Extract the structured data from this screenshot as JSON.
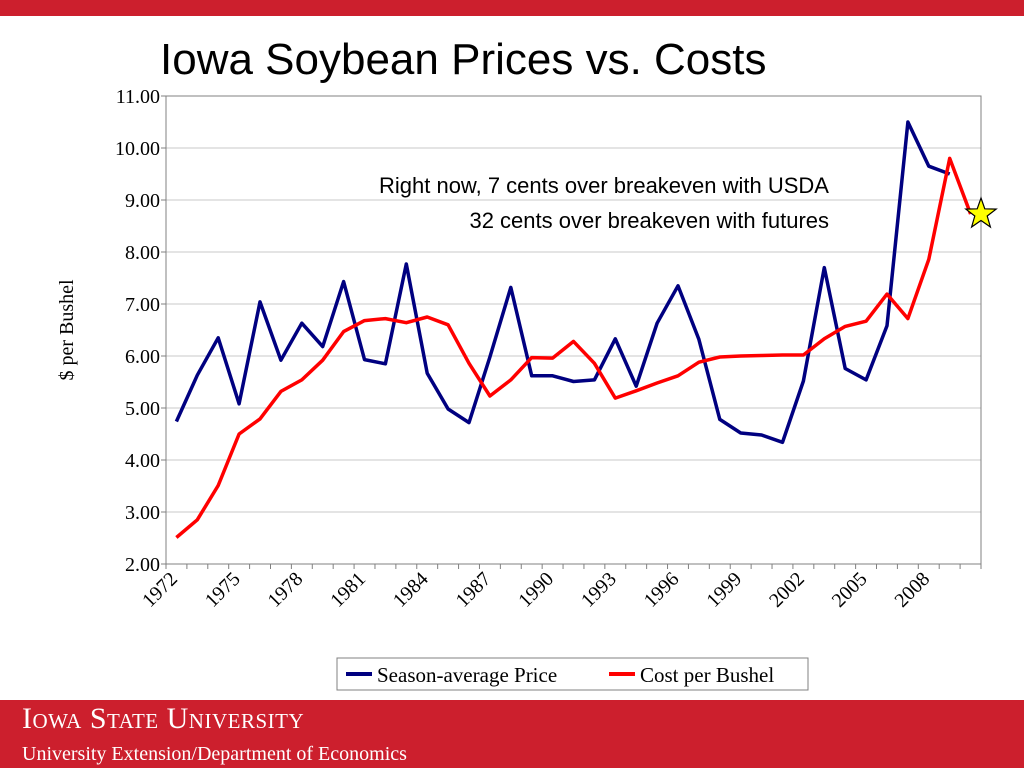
{
  "slide": {
    "title": "Iowa Soybean Prices vs. Costs",
    "footer_name": "Iowa State University",
    "footer_sub": "University Extension/Department of Economics",
    "accent": "#cc1f2d"
  },
  "chart_data": {
    "type": "line",
    "ylabel": "$ per Bushel",
    "ylim": [
      2,
      11
    ],
    "ytick_labels": [
      "2.00",
      "3.00",
      "4.00",
      "5.00",
      "6.00",
      "7.00",
      "8.00",
      "9.00",
      "10.00",
      "11.00"
    ],
    "xtick_labels": [
      "1972",
      "1975",
      "1978",
      "1981",
      "1984",
      "1987",
      "1990",
      "1993",
      "1996",
      "1999",
      "2002",
      "2005",
      "2008"
    ],
    "grid": true,
    "legend_position": "bottom",
    "annotation": [
      "Right now, 7 cents over breakeven with USDA",
      "32 cents over breakeven with futures"
    ],
    "series": [
      {
        "name": "Season-average Price",
        "color": "#000080",
        "x": [
          1972,
          1973,
          1974,
          1975,
          1976,
          1977,
          1978,
          1979,
          1980,
          1981,
          1982,
          1983,
          1984,
          1985,
          1986,
          1987,
          1988,
          1989,
          1990,
          1991,
          1992,
          1993,
          1994,
          1995,
          1996,
          1997,
          1998,
          1999,
          2000,
          2001,
          2002,
          2003,
          2004,
          2005,
          2006,
          2007,
          2008,
          2009
        ],
        "values": [
          4.74,
          5.63,
          6.35,
          5.08,
          7.04,
          5.92,
          6.63,
          6.18,
          7.43,
          5.93,
          5.85,
          7.77,
          5.67,
          4.98,
          4.72,
          5.98,
          7.32,
          5.62,
          5.62,
          5.51,
          5.54,
          6.33,
          5.42,
          6.63,
          7.35,
          6.32,
          4.78,
          4.52,
          4.48,
          4.34,
          5.52,
          7.7,
          5.76,
          5.54,
          6.58,
          10.5,
          9.65,
          9.5
        ]
      },
      {
        "name": "Cost per Bushel",
        "color": "#ff0000",
        "x": [
          1972,
          1973,
          1974,
          1975,
          1976,
          1977,
          1978,
          1979,
          1980,
          1981,
          1982,
          1983,
          1984,
          1985,
          1986,
          1987,
          1988,
          1989,
          1990,
          1991,
          1992,
          1993,
          1994,
          1995,
          1996,
          1997,
          1998,
          1999,
          2000,
          2001,
          2002,
          2003,
          2004,
          2005,
          2006,
          2007,
          2008,
          2009,
          2010
        ],
        "values": [
          2.51,
          2.85,
          3.51,
          4.5,
          4.79,
          5.32,
          5.54,
          5.92,
          6.47,
          6.68,
          6.72,
          6.64,
          6.75,
          6.6,
          5.86,
          5.23,
          5.54,
          5.97,
          5.96,
          6.28,
          5.86,
          5.19,
          5.33,
          5.48,
          5.62,
          5.88,
          5.98,
          6.0,
          6.01,
          6.02,
          6.02,
          6.33,
          6.57,
          6.67,
          7.19,
          6.72,
          7.86,
          9.8,
          8.73
        ]
      }
    ],
    "marker": {
      "shape": "star",
      "x": 2010.5,
      "y": 8.73,
      "color": "#ffff00"
    }
  }
}
